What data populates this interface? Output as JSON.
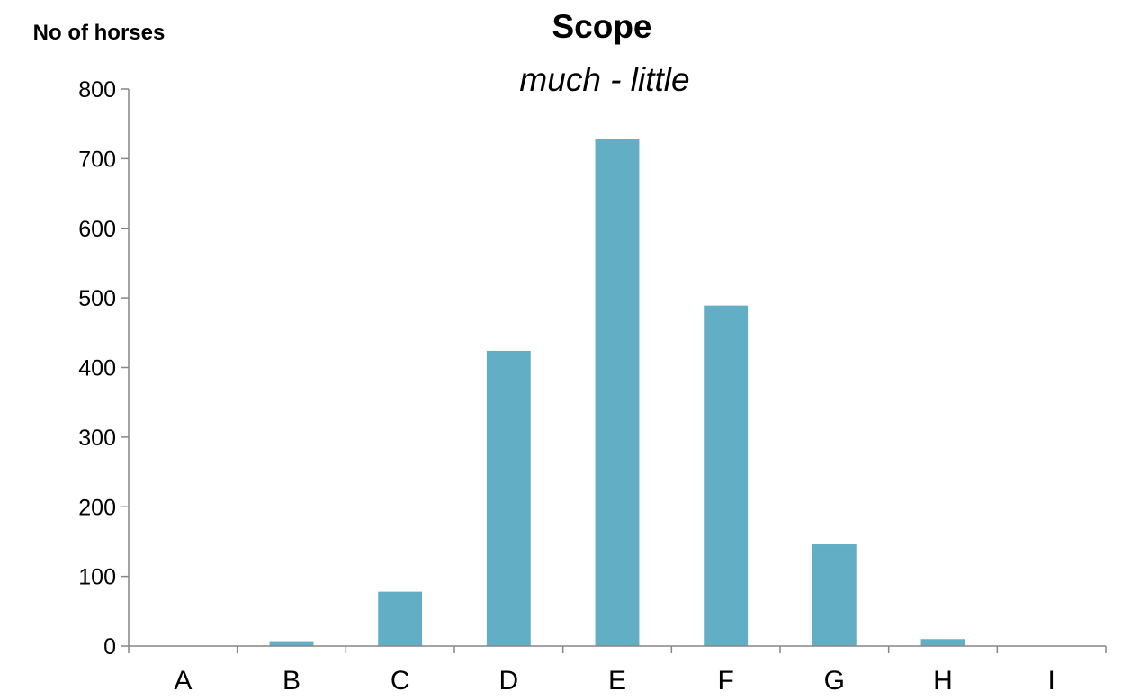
{
  "chart_data": {
    "type": "bar",
    "title": "Scope",
    "subtitle": "much - little",
    "ylabel": "No of horses",
    "xlabel": "",
    "categories": [
      "A",
      "B",
      "C",
      "D",
      "E",
      "F",
      "G",
      "H",
      "I"
    ],
    "values": [
      0,
      7,
      78,
      424,
      728,
      489,
      146,
      10,
      0
    ],
    "ylim": [
      0,
      800
    ],
    "yticks": [
      0,
      100,
      200,
      300,
      400,
      500,
      600,
      700,
      800
    ],
    "grid": false,
    "legend": "none",
    "bar_color": "#62AEC5"
  }
}
